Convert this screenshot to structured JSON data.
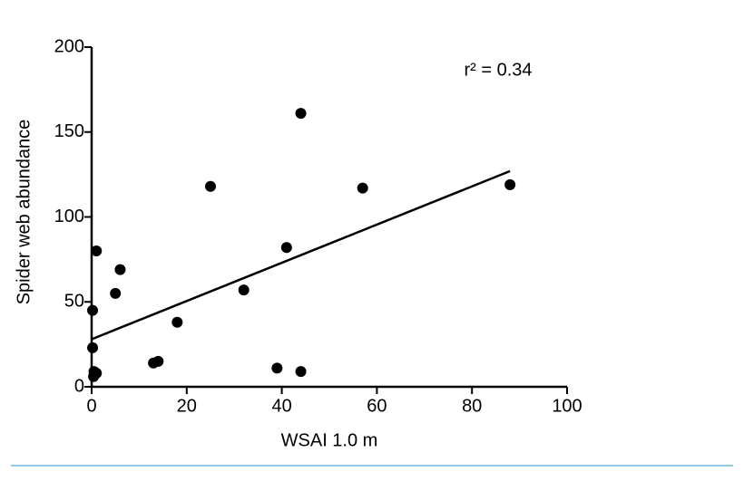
{
  "chart_data": {
    "type": "scatter",
    "x_label": "WSAI 1.0 m",
    "y_label": "Spider web abundance",
    "annotation": "r² = 0.34",
    "x": [
      0.2,
      0.2,
      0.5,
      0.4,
      1,
      1,
      6,
      5,
      13,
      14,
      18,
      25,
      32,
      39,
      44,
      41,
      44,
      57,
      88
    ],
    "values": [
      45,
      23,
      9,
      6,
      8,
      80,
      69,
      55,
      14,
      15,
      38,
      118,
      57,
      11,
      9,
      82,
      161,
      117,
      119
    ],
    "color": "#000000",
    "fit": {
      "x": [
        0,
        88
      ],
      "y": [
        28,
        127
      ]
    },
    "xlim": [
      0,
      100
    ],
    "xticks": [
      0,
      20,
      40,
      60,
      80,
      100
    ],
    "ylim": [
      0,
      200
    ],
    "yticks": [
      0,
      50,
      100,
      150,
      200
    ]
  }
}
